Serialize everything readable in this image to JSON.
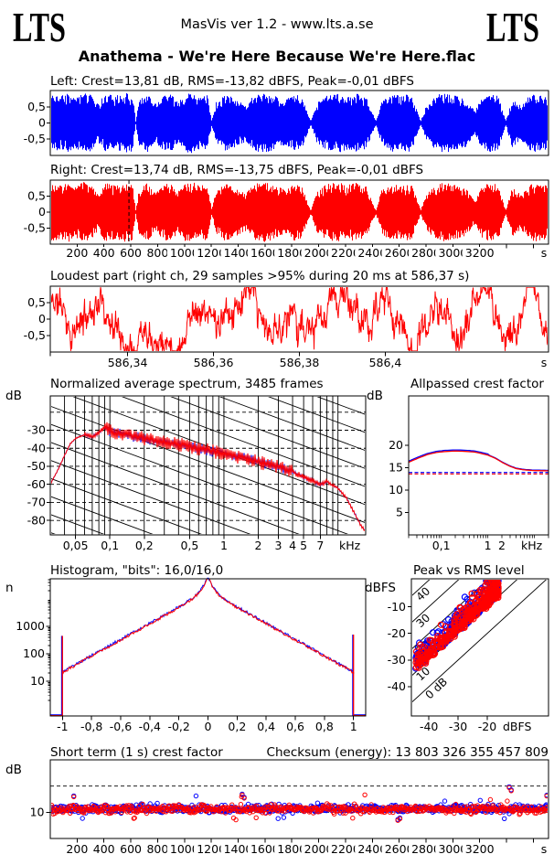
{
  "header": {
    "logo_left": "LTS",
    "logo_right": "LTS",
    "app_info": "MasVis ver 1.2 - www.lts.a.se",
    "title": "Anathema - We're Here Because We're Here.flac"
  },
  "colors": {
    "left_channel": "#0000ff",
    "right_channel": "#ff0000",
    "axis": "#000000",
    "background": "#ffffff"
  },
  "panels": {
    "left_wave_label": "Left: Crest=13,81 dB, RMS=-13,82 dBFS, Peak=-0,01 dBFS",
    "right_wave_label": "Right: Crest=13,74 dB, RMS=-13,75 dBFS, Peak=-0,01 dBFS",
    "loudest_title": "Loudest part (right ch, 29 samples >95% during 20 ms at 586,37 s)",
    "spectrum_title": "Normalized average spectrum, 3485 frames",
    "spectrum_ylabel": "dB",
    "allpassed_title": "Allpassed crest factor",
    "allpassed_ylabel": "dB",
    "histogram_title": "Histogram, \"bits\": 16,0/16,0",
    "histogram_ylabel": "n",
    "peakrms_title": "Peak vs RMS level",
    "peakrms_ylabel": "dBFS",
    "shortterm_title": "Short term (1 s) crest factor",
    "checksum": "Checksum (energy): 13 803 326 355 457 809",
    "shortterm_ylabel": "dB"
  },
  "chart_data": [
    {
      "type": "area",
      "name": "waveform_left",
      "channel": "left",
      "color": "#0000ff",
      "crest_db": 13.81,
      "rms_dbfs": -13.82,
      "peak_dbfs": -0.01,
      "xlim_s": [
        0,
        3713
      ],
      "xtick_step_s": 200,
      "xtick_labels": [
        "200",
        "400",
        "600",
        "800",
        "1000",
        "1200",
        "1400",
        "1600",
        "1800",
        "2000",
        "2200",
        "2400",
        "2600",
        "2800",
        "3000",
        "3200"
      ],
      "x_unit": "s",
      "ylim": [
        -1,
        1
      ],
      "ytick_values": [
        0.5,
        0,
        -0.5
      ],
      "ytick_labels": [
        "0,5",
        "0",
        "-0,5"
      ],
      "seed": 3,
      "envelope": [
        [
          0,
          0.92
        ],
        [
          0.02,
          0.85
        ],
        [
          0.035,
          0.95
        ],
        [
          0.05,
          0.78
        ],
        [
          0.065,
          0.95
        ],
        [
          0.08,
          0.88
        ],
        [
          0.095,
          0.6
        ],
        [
          0.11,
          0.92
        ],
        [
          0.13,
          0.85
        ],
        [
          0.15,
          0.95
        ],
        [
          0.165,
          0.88
        ],
        [
          0.171,
          0.06
        ],
        [
          0.178,
          0.72
        ],
        [
          0.195,
          0.92
        ],
        [
          0.21,
          0.6
        ],
        [
          0.225,
          0.85
        ],
        [
          0.24,
          0.92
        ],
        [
          0.255,
          0.68
        ],
        [
          0.27,
          0.9
        ],
        [
          0.285,
          0.95
        ],
        [
          0.3,
          0.82
        ],
        [
          0.315,
          0.9
        ],
        [
          0.324,
          0.08
        ],
        [
          0.332,
          0.65
        ],
        [
          0.35,
          0.9
        ],
        [
          0.37,
          0.78
        ],
        [
          0.39,
          0.6
        ],
        [
          0.41,
          0.88
        ],
        [
          0.43,
          0.95
        ],
        [
          0.45,
          0.85
        ],
        [
          0.47,
          0.7
        ],
        [
          0.49,
          0.92
        ],
        [
          0.505,
          0.8
        ],
        [
          0.523,
          0.06
        ],
        [
          0.535,
          0.62
        ],
        [
          0.555,
          0.88
        ],
        [
          0.575,
          0.95
        ],
        [
          0.595,
          0.85
        ],
        [
          0.615,
          0.92
        ],
        [
          0.635,
          0.8
        ],
        [
          0.654,
          0.06
        ],
        [
          0.665,
          0.68
        ],
        [
          0.685,
          0.9
        ],
        [
          0.705,
          0.85
        ],
        [
          0.725,
          0.92
        ],
        [
          0.744,
          0.07
        ],
        [
          0.755,
          0.55
        ],
        [
          0.775,
          0.88
        ],
        [
          0.795,
          0.95
        ],
        [
          0.815,
          0.85
        ],
        [
          0.835,
          0.75
        ],
        [
          0.853,
          0.38
        ],
        [
          0.868,
          0.82
        ],
        [
          0.885,
          0.92
        ],
        [
          0.9,
          0.85
        ],
        [
          0.915,
          0.06
        ],
        [
          0.928,
          0.8
        ],
        [
          0.945,
          0.55
        ],
        [
          0.96,
          0.85
        ],
        [
          0.975,
          0.92
        ],
        [
          0.99,
          0.88
        ],
        [
          1,
          0.8
        ]
      ]
    },
    {
      "type": "area",
      "name": "waveform_right",
      "channel": "right",
      "color": "#ff0000",
      "crest_db": 13.74,
      "rms_dbfs": -13.75,
      "peak_dbfs": -0.01,
      "loudest_marker_s": 586.37,
      "seed": 9,
      "ytick_labels": [
        "0,5",
        "0",
        "-0,5"
      ]
    },
    {
      "type": "line",
      "name": "loudest_part",
      "color": "#ff0000",
      "channel": "right",
      "samples_over_95": 29,
      "window_ms": 20,
      "at_s": 586.37,
      "xlim_s": [
        586.322,
        586.438
      ],
      "xticks_s": [
        586.34,
        586.36,
        586.38,
        586.4
      ],
      "xtick_labels": [
        "586,34",
        "586,36",
        "586,38",
        "586,4"
      ],
      "x_unit": "s",
      "ylim": [
        -1,
        1
      ],
      "ytick_labels": [
        "0,5",
        "0",
        "-0,5"
      ],
      "seed": 11
    },
    {
      "type": "line",
      "name": "spectrum",
      "frames": 3485,
      "xlim_khz": [
        0.03,
        17.5
      ],
      "xticks_khz": [
        0.05,
        0.1,
        0.2,
        0.5,
        1,
        2,
        3,
        4,
        5,
        7
      ],
      "xtick_labels": [
        "0,05",
        "0,1",
        "0,2",
        "0,5",
        "1",
        "2",
        "3",
        "4",
        "5",
        "7"
      ],
      "x_unit": "kHz",
      "ylim_db": [
        -88,
        -11
      ],
      "yticks_db": [
        -30,
        -40,
        -50,
        -60,
        -70,
        -80
      ],
      "grid_dashed_db": [
        -20,
        -30,
        -40,
        -50,
        -60,
        -70,
        -80
      ],
      "series": [
        {
          "name": "left",
          "color": "#0000ff"
        },
        {
          "name": "right",
          "color": "#ff0000"
        }
      ],
      "base_curve_khz_db": [
        [
          0.03,
          -60
        ],
        [
          0.035,
          -52
        ],
        [
          0.04,
          -44
        ],
        [
          0.045,
          -37.5
        ],
        [
          0.05,
          -34.5
        ],
        [
          0.06,
          -32.5
        ],
        [
          0.07,
          -33.5
        ],
        [
          0.08,
          -31.5
        ],
        [
          0.09,
          -28.5
        ],
        [
          0.1,
          -30.5
        ],
        [
          0.12,
          -31.5
        ],
        [
          0.15,
          -33
        ],
        [
          0.2,
          -34.5
        ],
        [
          0.3,
          -36.5
        ],
        [
          0.4,
          -38
        ],
        [
          0.5,
          -39
        ],
        [
          0.7,
          -41
        ],
        [
          1,
          -43
        ],
        [
          1.5,
          -45.5
        ],
        [
          2,
          -47.5
        ],
        [
          3,
          -50
        ],
        [
          4,
          -53
        ],
        [
          5,
          -56
        ],
        [
          6,
          -58
        ],
        [
          7,
          -60
        ],
        [
          8,
          -58.5
        ],
        [
          9,
          -60.5
        ],
        [
          10,
          -62
        ],
        [
          12,
          -68
        ],
        [
          14,
          -76
        ],
        [
          16,
          -83
        ],
        [
          17.5,
          -86
        ]
      ],
      "noise_db": 4,
      "seed": 23
    },
    {
      "type": "line",
      "name": "allpassed_crest",
      "xlim_khz": [
        0.02,
        20
      ],
      "xticks_khz": [
        0.1,
        1,
        2
      ],
      "xtick_labels": [
        "0,1",
        "1",
        "2"
      ],
      "x_unit": "kHz",
      "ylim_db": [
        0,
        31
      ],
      "yticks_db": [
        20,
        15,
        10,
        5
      ],
      "curve_khz_db": [
        [
          0.02,
          16.2
        ],
        [
          0.03,
          17.0
        ],
        [
          0.05,
          17.9
        ],
        [
          0.08,
          18.4
        ],
        [
          0.12,
          18.6
        ],
        [
          0.2,
          18.7
        ],
        [
          0.3,
          18.65
        ],
        [
          0.5,
          18.5
        ],
        [
          0.7,
          18.2
        ],
        [
          1,
          17.8
        ],
        [
          1.5,
          17.0
        ],
        [
          2,
          16.2
        ],
        [
          3,
          15.3
        ],
        [
          4,
          14.8
        ],
        [
          6,
          14.5
        ],
        [
          10,
          14.35
        ],
        [
          20,
          14.3
        ]
      ],
      "blue_offset_db": 0.25,
      "dashed_left_db": 13.81,
      "dashed_right_db": 13.74
    },
    {
      "type": "line",
      "name": "histogram",
      "bits_label": "16,0/16,0",
      "xlim": [
        -1.075,
        1.075
      ],
      "xticks": [
        -1,
        -0.8,
        -0.6,
        -0.4,
        -0.2,
        0,
        0.2,
        0.4,
        0.6,
        0.8,
        1
      ],
      "xtick_labels": [
        "-1",
        "-0,8",
        "-0,6",
        "-0,4",
        "-0,2",
        "0",
        "0,2",
        "0,4",
        "0,6",
        "0,8",
        "1"
      ],
      "ylog_ticks": [
        10,
        100,
        1000
      ],
      "ytick_labels": [
        "10",
        "100",
        "1000"
      ],
      "edge_spike_left_n": 450,
      "edge_spike_right_n": 500,
      "edge_n": 20,
      "apex_log10_n": 4.27,
      "seed": 5
    },
    {
      "type": "scatter",
      "name": "peak_vs_rms",
      "xlim_dbfs": [
        -46,
        1
      ],
      "ylim_dbfs": [
        -51,
        0.5
      ],
      "xticks": [
        -40,
        -30,
        -20
      ],
      "xtick_labels": [
        "-40",
        "-30",
        "-20"
      ],
      "yticks": [
        -10,
        -20,
        -30,
        -40
      ],
      "ytick_labels": [
        "-10",
        "-20",
        "-30",
        "-40"
      ],
      "x_unit": "dBFS",
      "y_unit": "dBFS",
      "diagonals_db": [
        40,
        30,
        20,
        10,
        0
      ],
      "diagonal_labels": [
        "40",
        "30",
        "20",
        "10",
        "0 dB"
      ],
      "n_points": 340,
      "seed": 41
    },
    {
      "type": "scatter",
      "name": "short_term_crest",
      "xlim_s": [
        0,
        3713
      ],
      "ylim_db": [
        0,
        30
      ],
      "yticks_db": [
        10
      ],
      "ytick_labels": [
        "10"
      ],
      "dashed_db": [
        10,
        20
      ],
      "base_db": 11.2,
      "spread_db": 1.5,
      "outliers_s_db": [
        [
          175,
          15.9
        ],
        [
          1430,
          16.6
        ],
        [
          1445,
          15.4
        ],
        [
          2590,
          6.9
        ],
        [
          2605,
          7.5
        ],
        [
          3420,
          19.4
        ],
        [
          3435,
          18.2
        ],
        [
          3700,
          16.2
        ]
      ],
      "x_unit": "s",
      "seed": 77
    }
  ]
}
